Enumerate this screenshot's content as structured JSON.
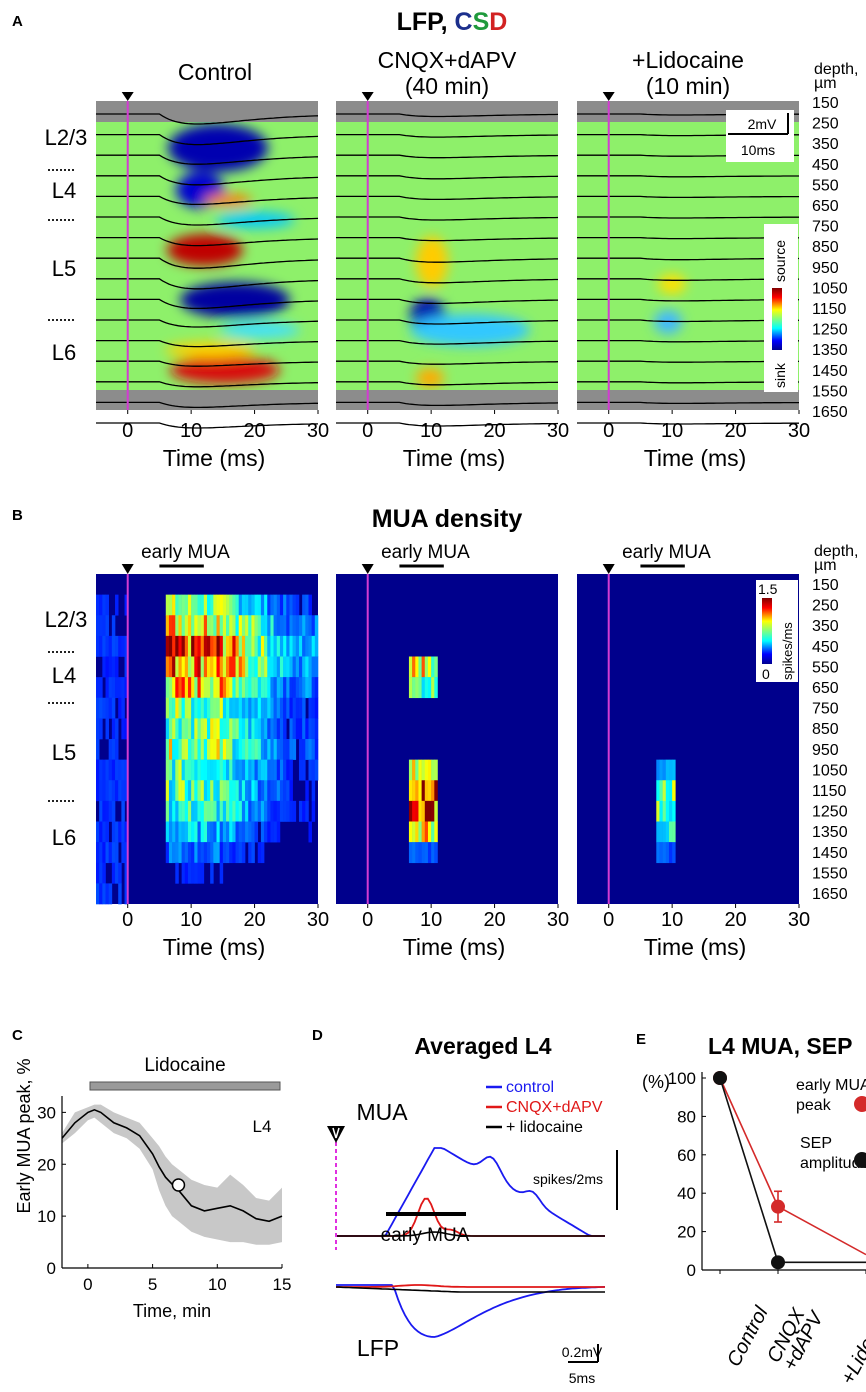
{
  "panel_labels": {
    "A": "A",
    "B": "B",
    "C": "C",
    "D": "D",
    "E": "E"
  },
  "panelA": {
    "title_parts": [
      {
        "text": "LFP, ",
        "color": "#111111"
      },
      {
        "text": "C",
        "color": "#1c2f8c"
      },
      {
        "text": "S",
        "color": "#1f9a3c"
      },
      {
        "text": "D",
        "color": "#d22222"
      }
    ],
    "subplots": [
      {
        "title_lines": [
          "Control"
        ],
        "xlabel": "Time (ms)"
      },
      {
        "title_lines": [
          "CNQX+dAPV",
          "(40 min)"
        ],
        "xlabel": "Time (ms)"
      },
      {
        "title_lines": [
          "+Lidocaine",
          "(10 min)"
        ],
        "xlabel": "Time (ms)"
      }
    ],
    "depth_header": [
      "depth,",
      "µm"
    ],
    "depths": [
      "150",
      "250",
      "350",
      "450",
      "550",
      "650",
      "750",
      "850",
      "950",
      "1050",
      "1150",
      "1250",
      "1350",
      "1450",
      "1550",
      "1650"
    ],
    "layers": [
      "L2/3",
      "L4",
      "L5",
      "L6"
    ],
    "xticks": [
      "0",
      "10",
      "20",
      "30"
    ],
    "scalebar": {
      "v": "2mV",
      "h": "10ms"
    },
    "colorbar": {
      "top": "source",
      "bottom": "sink"
    },
    "colors": {
      "cursor": "#d23cd2",
      "gray_band": "#8c8c8c",
      "trace": "#000000"
    }
  },
  "panelB": {
    "title": "MUA density",
    "early_label": "early MUA",
    "depth_header": [
      "depth,",
      "µm"
    ],
    "xlabel": "Time (ms)",
    "colorbar": {
      "max": "1.5",
      "min": "0",
      "unit": "spikes/ms"
    }
  },
  "panelC": {
    "bar_label": "Lidocaine",
    "region_label": "L4",
    "chart_data": {
      "type": "line",
      "xlabel": "Time, min",
      "ylabel": "Early MUA peak, %",
      "xlim": [
        -2,
        15
      ],
      "ylim": [
        0,
        32
      ],
      "xticks": [
        0,
        5,
        10,
        15
      ],
      "yticks": [
        0,
        10,
        20,
        30
      ],
      "x": [
        -2,
        -1,
        0,
        0.5,
        1,
        2,
        3,
        4,
        5,
        5.5,
        6,
        6.5,
        7,
        8,
        9,
        10,
        11,
        12,
        13,
        14,
        15
      ],
      "y": [
        25,
        28,
        30,
        30.5,
        30,
        28,
        27,
        25.5,
        22,
        19.5,
        17.5,
        16.2,
        15,
        12,
        11,
        11.5,
        12,
        11,
        9.5,
        9,
        10
      ],
      "band_low": [
        24,
        26,
        28.5,
        29,
        28,
        26,
        25,
        23,
        19,
        15,
        12,
        10,
        9,
        7,
        6,
        5.5,
        5,
        5,
        4.5,
        4.5,
        5
      ],
      "band_high": [
        26,
        30,
        31,
        31.5,
        31.5,
        30,
        29,
        28,
        25,
        23.5,
        21.5,
        20,
        19,
        17,
        16,
        15.5,
        18,
        16,
        13.5,
        13,
        15.5
      ],
      "marker": {
        "x": 7,
        "y": 16
      },
      "lidocaine_range": [
        0,
        15
      ]
    }
  },
  "panelD": {
    "title": "Averaged L4",
    "labels": {
      "mua": "MUA",
      "lfp": "LFP",
      "early_mua": "early MUA"
    },
    "legend": [
      {
        "name": "control",
        "color": "#1a1af0"
      },
      {
        "name": "CNQX+dAPV",
        "color": "#e01818"
      },
      {
        "name": "+ lidocaine",
        "color": "#000000"
      }
    ],
    "scalebars": {
      "mua": "spikes/2ms",
      "lfp_v": "0.2mV",
      "lfp_h": "5ms"
    }
  },
  "panelE": {
    "title": "L4 MUA, SEP",
    "chart_data": {
      "type": "line",
      "ylabel": "(%)",
      "ylim": [
        0,
        100
      ],
      "yticks": [
        0,
        20,
        40,
        60,
        80,
        100
      ],
      "categories": [
        "Control",
        "CNQX +dAPV",
        "+Lidocaine"
      ],
      "series": [
        {
          "name": "early MUA peak",
          "color": "#d42a2a",
          "values": [
            100,
            33,
            8
          ],
          "errors": [
            0,
            8,
            0
          ]
        },
        {
          "name": "SEP amplitude",
          "color": "#111111",
          "values": [
            100,
            4,
            4
          ],
          "errors": [
            0,
            1.5,
            0
          ]
        }
      ]
    },
    "legend_lines": [
      [
        "early MUA",
        "peak"
      ],
      [
        "SEP",
        "amplitude"
      ]
    ],
    "tick_labels": [
      "Control",
      "CNQX",
      "+dAPV",
      "+Lidocaine"
    ]
  }
}
